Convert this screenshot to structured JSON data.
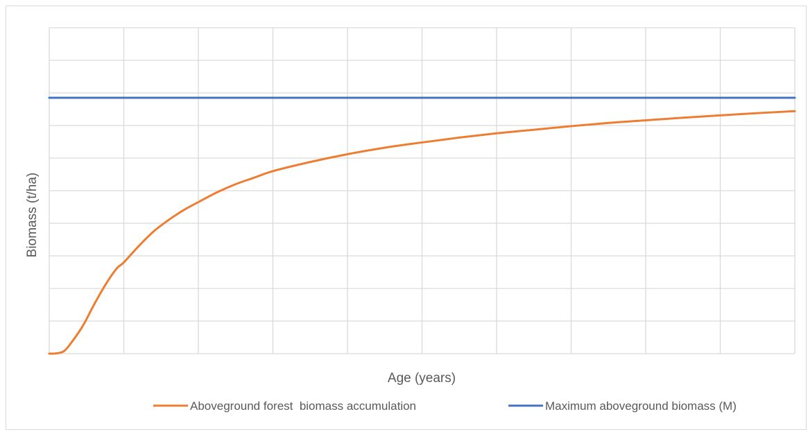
{
  "chart_data": {
    "type": "line",
    "title": "",
    "xlabel": "Age (years)",
    "ylabel": "Biomass (t/ha)",
    "xlim": [
      0,
      10
    ],
    "ylim": [
      0,
      10
    ],
    "grid": true,
    "show_tick_labels": false,
    "legend_position": "bottom",
    "series": [
      {
        "name": "Aboveground forest  biomass accumulation",
        "color": "#ED7D31",
        "x": [
          0,
          0.1,
          0.2,
          0.3,
          0.45,
          0.6,
          0.75,
          0.9,
          1.0,
          1.2,
          1.4,
          1.6,
          1.8,
          2.0,
          2.25,
          2.5,
          2.75,
          3.0,
          3.5,
          4.0,
          4.5,
          5.0,
          5.5,
          6.0,
          6.5,
          7.0,
          7.5,
          8.0,
          8.5,
          9.0,
          9.5,
          10.0
        ],
        "values": [
          0,
          0.01,
          0.08,
          0.35,
          0.85,
          1.5,
          2.1,
          2.6,
          2.8,
          3.3,
          3.75,
          4.1,
          4.4,
          4.65,
          4.95,
          5.2,
          5.4,
          5.6,
          5.88,
          6.12,
          6.32,
          6.48,
          6.63,
          6.76,
          6.87,
          6.98,
          7.08,
          7.16,
          7.24,
          7.31,
          7.38,
          7.44
        ]
      },
      {
        "name": "Maximum aboveground biomass (M)",
        "color": "#4472C4",
        "x": [
          0,
          10
        ],
        "values": [
          7.85,
          7.85
        ]
      }
    ]
  }
}
